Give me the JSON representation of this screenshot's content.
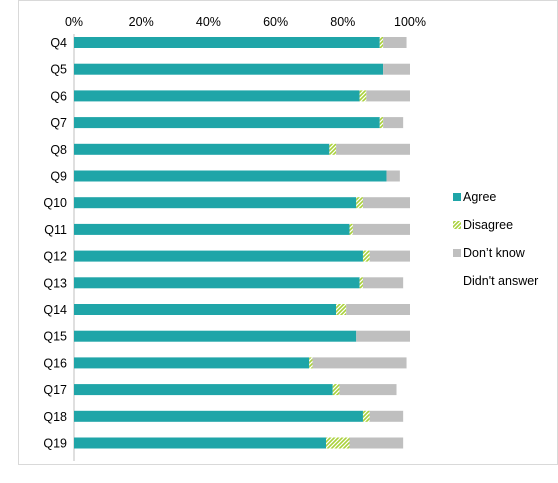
{
  "chart_data": {
    "type": "bar",
    "orientation": "horizontal",
    "stacked": true,
    "categories": [
      "Q4",
      "Q5",
      "Q6",
      "Q7",
      "Q8",
      "Q9",
      "Q10",
      "Q11",
      "Q12",
      "Q13",
      "Q14",
      "Q15",
      "Q16",
      "Q17",
      "Q18",
      "Q19"
    ],
    "series": [
      {
        "name": "Agree",
        "color": "#1fa5a8",
        "pattern": "solid",
        "values": [
          91,
          92,
          85,
          91,
          76,
          93,
          84,
          82,
          86,
          85,
          78,
          84,
          70,
          77,
          86,
          75
        ]
      },
      {
        "name": "Disagree",
        "color": "#a9d13a",
        "pattern": "diagonal-hatch",
        "values": [
          1,
          0,
          2,
          1,
          2,
          0,
          2,
          1,
          2,
          1,
          3,
          0,
          1,
          2,
          2,
          7
        ]
      },
      {
        "name": "Don’t know",
        "color": "#bfbfbf",
        "pattern": "solid",
        "values": [
          7,
          8,
          13,
          6,
          22,
          4,
          14,
          17,
          12,
          12,
          19,
          16,
          28,
          17,
          10,
          16
        ]
      },
      {
        "name": "Didn't answer",
        "color": "#ffffff",
        "pattern": "solid",
        "values": [
          1,
          0,
          0,
          2,
          0,
          3,
          0,
          0,
          0,
          2,
          0,
          0,
          1,
          4,
          2,
          2
        ]
      }
    ],
    "x_axis": {
      "ticks": [
        "0%",
        "20%",
        "40%",
        "60%",
        "80%",
        "100%"
      ],
      "tick_values": [
        0,
        20,
        40,
        60,
        80,
        100
      ],
      "position": "top"
    },
    "xlim": [
      0,
      100
    ],
    "gridlines": false,
    "legend_position": "right"
  }
}
